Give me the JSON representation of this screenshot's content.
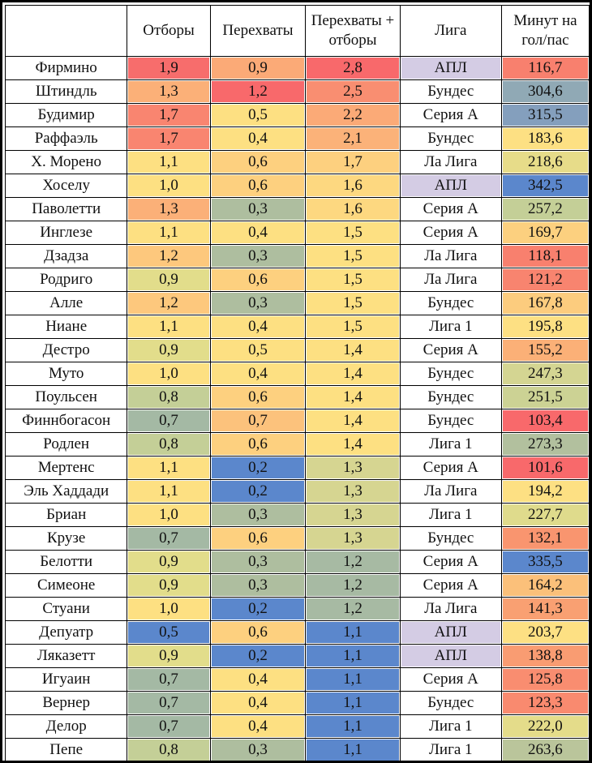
{
  "header": {
    "player": "",
    "tackles": "Отборы",
    "interceptions": "Перехваты",
    "combined": "Перехваты + отборы",
    "league": "Лига",
    "minutes": "Минут на гол/пас"
  },
  "palette": {
    "red": "#f8696b",
    "orange_red": "#f98d70",
    "orange": "#fbaa77",
    "light_orange": "#fdc47c",
    "yellow": "#ffe083",
    "khaki": "#e2dd8b",
    "olive": "#c4cf97",
    "grey_green": "#aebe9f",
    "grey_blue": "#90a9b5",
    "steel_blue": "#7498c4",
    "blue": "#5b87cc",
    "lavender": "#d4cce4",
    "white": "#ffffff"
  },
  "rows": [
    {
      "name": "Фирмино",
      "tackles": "1,9",
      "tc": "#f76d6c",
      "inter": "0,9",
      "ic": "#fbaa77",
      "comb": "2,8",
      "cc": "#f8696b",
      "league": "АПЛ",
      "lc": "#d4cce4",
      "min": "116,7",
      "mc": "#f8806e"
    },
    {
      "name": "Штиндль",
      "tackles": "1,3",
      "tc": "#fbb078",
      "inter": "1,2",
      "ic": "#f8696b",
      "comb": "2,5",
      "cc": "#f98e71",
      "league": "Бундес",
      "lc": "#ffffff",
      "min": "304,6",
      "mc": "#90a9b5"
    },
    {
      "name": "Будимир",
      "tackles": "1,7",
      "tc": "#f98570",
      "inter": "0,5",
      "ic": "#fde082",
      "comb": "2,2",
      "cc": "#fbaa77",
      "league": "Серия А",
      "lc": "#ffffff",
      "min": "315,5",
      "mc": "#849fbd"
    },
    {
      "name": "Раффаэль",
      "tackles": "1,7",
      "tc": "#f98570",
      "inter": "0,4",
      "ic": "#fde082",
      "comb": "2,1",
      "cc": "#fbb279",
      "league": "Бундес",
      "lc": "#ffffff",
      "min": "183,6",
      "mc": "#fde083"
    },
    {
      "name": "Х. Морено",
      "tackles": "1,1",
      "tc": "#fde082",
      "inter": "0,6",
      "ic": "#fdd07f",
      "comb": "1,7",
      "cc": "#fdd07f",
      "league": "Ла Лига",
      "lc": "#ffffff",
      "min": "218,6",
      "mc": "#e7dc89"
    },
    {
      "name": "Хоселу",
      "tackles": "1,0",
      "tc": "#fde082",
      "inter": "0,6",
      "ic": "#fdd07f",
      "comb": "1,6",
      "cc": "#fdd880",
      "league": "АПЛ",
      "lc": "#d4cce4",
      "min": "342,5",
      "mc": "#5b87cc"
    },
    {
      "name": "Паволетти",
      "tackles": "1,3",
      "tc": "#fbb078",
      "inter": "0,3",
      "ic": "#aebe9f",
      "comb": "1,6",
      "cc": "#fdd880",
      "league": "Серия А",
      "lc": "#ffffff",
      "min": "257,2",
      "mc": "#c4cf97"
    },
    {
      "name": "Инглезе",
      "tackles": "1,1",
      "tc": "#fde082",
      "inter": "0,4",
      "ic": "#fde082",
      "comb": "1,5",
      "cc": "#fde082",
      "league": "Серия А",
      "lc": "#ffffff",
      "min": "169,7",
      "mc": "#fcd07f"
    },
    {
      "name": "Дзадза",
      "tackles": "1,2",
      "tc": "#fdc87d",
      "inter": "0,3",
      "ic": "#aebe9f",
      "comb": "1,5",
      "cc": "#fde082",
      "league": "Ла Лига",
      "lc": "#ffffff",
      "min": "118,1",
      "mc": "#f8806e"
    },
    {
      "name": "Родриго",
      "tackles": "0,9",
      "tc": "#e2dd8b",
      "inter": "0,6",
      "ic": "#fdd07f",
      "comb": "1,5",
      "cc": "#fde082",
      "league": "Ла Лига",
      "lc": "#ffffff",
      "min": "121,2",
      "mc": "#f8846f"
    },
    {
      "name": "Алле",
      "tackles": "1,2",
      "tc": "#fdc87d",
      "inter": "0,3",
      "ic": "#aebe9f",
      "comb": "1,5",
      "cc": "#fde082",
      "league": "Бундес",
      "lc": "#ffffff",
      "min": "167,8",
      "mc": "#fccc7e"
    },
    {
      "name": "Ниане",
      "tackles": "1,1",
      "tc": "#fde082",
      "inter": "0,4",
      "ic": "#fde082",
      "comb": "1,5",
      "cc": "#fde082",
      "league": "Лига 1",
      "lc": "#ffffff",
      "min": "195,8",
      "mc": "#fde083"
    },
    {
      "name": "Дестро",
      "tackles": "0,9",
      "tc": "#e2dd8b",
      "inter": "0,5",
      "ic": "#fde082",
      "comb": "1,4",
      "cc": "#fde082",
      "league": "Серия А",
      "lc": "#ffffff",
      "min": "155,2",
      "mc": "#fbb077"
    },
    {
      "name": "Муто",
      "tackles": "1,0",
      "tc": "#fde082",
      "inter": "0,4",
      "ic": "#fde082",
      "comb": "1,4",
      "cc": "#fde082",
      "league": "Бундес",
      "lc": "#ffffff",
      "min": "247,3",
      "mc": "#d4d592"
    },
    {
      "name": "Поульсен",
      "tackles": "0,8",
      "tc": "#c4cf97",
      "inter": "0,6",
      "ic": "#fdd07f",
      "comb": "1,4",
      "cc": "#fde082",
      "league": "Бундес",
      "lc": "#ffffff",
      "min": "251,5",
      "mc": "#ccd294"
    },
    {
      "name": "Финнбогасон",
      "tackles": "0,7",
      "tc": "#a4b9a4",
      "inter": "0,7",
      "ic": "#fcc27c",
      "comb": "1,4",
      "cc": "#fde082",
      "league": "Бундес",
      "lc": "#ffffff",
      "min": "103,4",
      "mc": "#f8696b"
    },
    {
      "name": "Родлен",
      "tackles": "0,8",
      "tc": "#c4cf97",
      "inter": "0,6",
      "ic": "#fdd07f",
      "comb": "1,4",
      "cc": "#fde082",
      "league": "Лига 1",
      "lc": "#ffffff",
      "min": "273,3",
      "mc": "#b2c09e"
    },
    {
      "name": "Мертенс",
      "tackles": "1,1",
      "tc": "#fde082",
      "inter": "0,2",
      "ic": "#5b87cc",
      "comb": "1,3",
      "cc": "#d6d591",
      "league": "Серия А",
      "lc": "#ffffff",
      "min": "101,6",
      "mc": "#f8696b"
    },
    {
      "name": "Эль Хаддади",
      "tackles": "1,1",
      "tc": "#fde082",
      "inter": "0,2",
      "ic": "#5b87cc",
      "comb": "1,3",
      "cc": "#d6d591",
      "league": "Ла Лига",
      "lc": "#ffffff",
      "min": "194,2",
      "mc": "#fde083"
    },
    {
      "name": "Бриан",
      "tackles": "1,0",
      "tc": "#fde082",
      "inter": "0,3",
      "ic": "#aebe9f",
      "comb": "1,3",
      "cc": "#d6d591",
      "league": "Лига 1",
      "lc": "#ffffff",
      "min": "227,7",
      "mc": "#dfdb8c"
    },
    {
      "name": "Крузе",
      "tackles": "0,7",
      "tc": "#a4b9a4",
      "inter": "0,6",
      "ic": "#fdd07f",
      "comb": "1,3",
      "cc": "#d6d591",
      "league": "Бундес",
      "lc": "#ffffff",
      "min": "132,1",
      "mc": "#f9956f"
    },
    {
      "name": "Белотти",
      "tackles": "0,9",
      "tc": "#e2dd8b",
      "inter": "0,3",
      "ic": "#aebe9f",
      "comb": "1,2",
      "cc": "#a7baa3",
      "league": "Серия А",
      "lc": "#ffffff",
      "min": "335,5",
      "mc": "#5b87cc"
    },
    {
      "name": "Симеоне",
      "tackles": "0,9",
      "tc": "#e2dd8b",
      "inter": "0,3",
      "ic": "#aebe9f",
      "comb": "1,2",
      "cc": "#a7baa3",
      "league": "Серия А",
      "lc": "#ffffff",
      "min": "164,2",
      "mc": "#fbc07a"
    },
    {
      "name": "Стуани",
      "tackles": "1,0",
      "tc": "#fde082",
      "inter": "0,2",
      "ic": "#5b87cc",
      "comb": "1,2",
      "cc": "#a7baa3",
      "league": "Ла Лига",
      "lc": "#ffffff",
      "min": "141,3",
      "mc": "#f9a072"
    },
    {
      "name": "Депуатр",
      "tackles": "0,5",
      "tc": "#5b87cc",
      "inter": "0,6",
      "ic": "#fdd07f",
      "comb": "1,1",
      "cc": "#5b87cc",
      "league": "АПЛ",
      "lc": "#d4cce4",
      "min": "203,7",
      "mc": "#fde083"
    },
    {
      "name": "Ляказетт",
      "tackles": "0,9",
      "tc": "#e2dd8b",
      "inter": "0,2",
      "ic": "#5b87cc",
      "comb": "1,1",
      "cc": "#5b87cc",
      "league": "АПЛ",
      "lc": "#d4cce4",
      "min": "138,8",
      "mc": "#f99c72"
    },
    {
      "name": "Игуаин",
      "tackles": "0,7",
      "tc": "#a4b9a4",
      "inter": "0,4",
      "ic": "#fde082",
      "comb": "1,1",
      "cc": "#5b87cc",
      "league": "Серия А",
      "lc": "#ffffff",
      "min": "125,8",
      "mc": "#f98d70"
    },
    {
      "name": "Вернер",
      "tackles": "0,7",
      "tc": "#a4b9a4",
      "inter": "0,4",
      "ic": "#fde082",
      "comb": "1,1",
      "cc": "#5b87cc",
      "league": "Бундес",
      "lc": "#ffffff",
      "min": "123,3",
      "mc": "#f98a6f"
    },
    {
      "name": "Делор",
      "tackles": "0,7",
      "tc": "#a4b9a4",
      "inter": "0,4",
      "ic": "#fde082",
      "comb": "1,1",
      "cc": "#5b87cc",
      "league": "Лига 1",
      "lc": "#ffffff",
      "min": "222,0",
      "mc": "#e4dc8a"
    },
    {
      "name": "Пепе",
      "tackles": "0,8",
      "tc": "#c4cf97",
      "inter": "0,3",
      "ic": "#aebe9f",
      "comb": "1,1",
      "cc": "#5b87cc",
      "league": "Лига 1",
      "lc": "#ffffff",
      "min": "263,6",
      "mc": "#bac59b"
    }
  ]
}
